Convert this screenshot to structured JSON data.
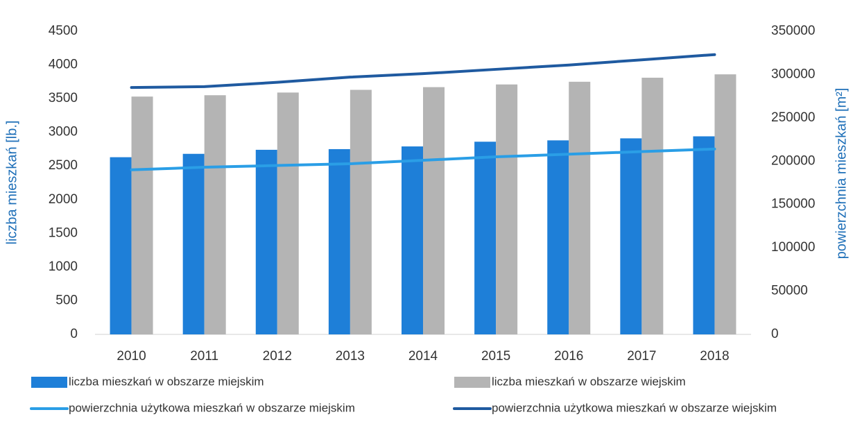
{
  "chart_data": {
    "type": "bar_line",
    "categories": [
      "2010",
      "2011",
      "2012",
      "2013",
      "2014",
      "2015",
      "2016",
      "2017",
      "2018"
    ],
    "ylabel": "liczba mieszkań [lb.]",
    "y2label": "powierzchnia mieszkań [m²]",
    "ylim": [
      0,
      4500
    ],
    "yticks": [
      0,
      500,
      1000,
      1500,
      2000,
      2500,
      3000,
      3500,
      4000,
      4500
    ],
    "y2lim": [
      0,
      350000
    ],
    "y2ticks": [
      0,
      50000,
      100000,
      150000,
      200000,
      250000,
      300000,
      350000
    ],
    "series": [
      {
        "name": "liczba mieszkań w obszarze miejskim",
        "kind": "bar",
        "color": "#1e7fd8",
        "values": [
          2630,
          2680,
          2740,
          2750,
          2790,
          2860,
          2880,
          2910,
          2940
        ]
      },
      {
        "name": "liczba mieszkań w obszarze wiejskim",
        "kind": "bar",
        "color": "#b4b4b4",
        "values": [
          3530,
          3550,
          3590,
          3630,
          3670,
          3710,
          3750,
          3810,
          3860
        ]
      },
      {
        "name": "powierzchnia użytkowa mieszkań w obszarze miejskim",
        "kind": "line",
        "axis": "y2",
        "color": "#2a9ee6",
        "values": [
          190000,
          193000,
          195000,
          197000,
          201000,
          205000,
          208000,
          211000,
          214000
        ]
      },
      {
        "name": "powierzchnia użytkowa mieszkań w obszarze wiejskim",
        "kind": "line",
        "axis": "y2",
        "color": "#1f5aa0",
        "values": [
          285000,
          286000,
          291000,
          297000,
          301000,
          306000,
          311000,
          317000,
          323000
        ]
      }
    ]
  }
}
